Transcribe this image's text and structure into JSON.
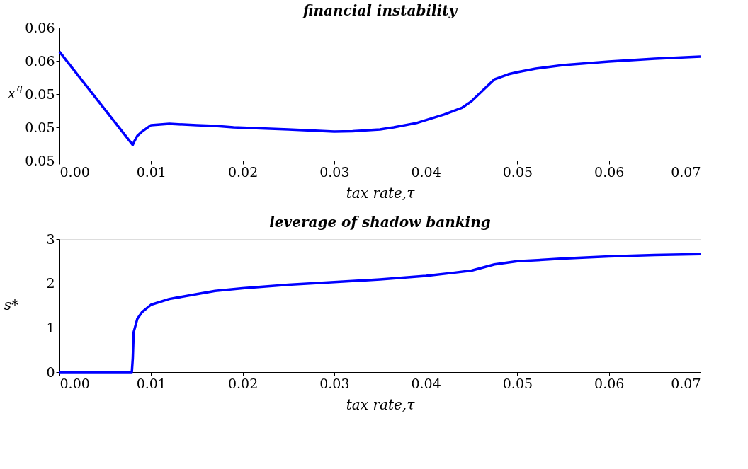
{
  "chart_data": [
    {
      "type": "line",
      "title": "financial instability",
      "xlabel": "tax rate,τ",
      "ylabel": "x$^{q}$",
      "x": [
        0,
        0.008,
        0.0082,
        0.0085,
        0.009,
        0.01,
        0.012,
        0.015,
        0.017,
        0.019,
        0.025,
        0.03,
        0.032,
        0.035,
        0.0365,
        0.039,
        0.042,
        0.044,
        0.045,
        0.0475,
        0.049,
        0.05,
        0.052,
        0.055,
        0.06,
        0.065,
        0.07
      ],
      "series": [
        {
          "color": "#0000ff",
          "values": [
            0.05655,
            0.05094,
            0.05119,
            0.05149,
            0.05174,
            0.05213,
            0.05221,
            0.05213,
            0.05209,
            0.052,
            0.05187,
            0.05174,
            0.05177,
            0.05187,
            0.052,
            0.05226,
            0.05277,
            0.05319,
            0.05357,
            0.05489,
            0.05519,
            0.05532,
            0.05553,
            0.05574,
            0.05596,
            0.05613,
            0.05626
          ]
        }
      ],
      "xlim": [
        0,
        0.07
      ],
      "xticks": [
        {
          "value": 0,
          "label": "0.00"
        },
        0.01,
        0.02,
        0.03,
        0.04,
        0.05,
        0.06,
        0.07
      ],
      "ylim": [
        0.05,
        0.058
      ],
      "yticks": [
        0.05,
        {
          "value": 0.052,
          "label": "0.05"
        },
        {
          "value": 0.054,
          "label": "0.05"
        },
        {
          "value": 0.056,
          "label": "0.06"
        },
        {
          "value": 0.058,
          "label": "0.06"
        }
      ],
      "grid": false,
      "marker": "none",
      "line_style": "solid"
    },
    {
      "type": "line",
      "title": "leverage of shadow banking",
      "xlabel": "tax rate,τ",
      "ylabel": "s*",
      "x": [
        0,
        0.0079,
        0.008,
        0.0081,
        0.0085,
        0.009,
        0.01,
        0.012,
        0.015,
        0.017,
        0.02,
        0.025,
        0.03,
        0.035,
        0.04,
        0.043,
        0.045,
        0.0475,
        0.05,
        0.055,
        0.06,
        0.065,
        0.07
      ],
      "series": [
        {
          "color": "#0000ff",
          "values": [
            0,
            0,
            0.3,
            0.9,
            1.2,
            1.35,
            1.52,
            1.65,
            1.76,
            1.83,
            1.89,
            1.97,
            2.03,
            2.09,
            2.17,
            2.24,
            2.29,
            2.43,
            2.5,
            2.56,
            2.61,
            2.64,
            2.66
          ]
        }
      ],
      "xlim": [
        0,
        0.07
      ],
      "xticks": [
        {
          "value": 0,
          "label": "0.00"
        },
        0.01,
        0.02,
        0.03,
        0.04,
        0.05,
        0.06,
        0.07
      ],
      "ylim": [
        0,
        3
      ],
      "yticks": [
        0,
        1,
        2,
        3
      ],
      "grid": false,
      "marker": "none",
      "line_style": "solid"
    }
  ]
}
